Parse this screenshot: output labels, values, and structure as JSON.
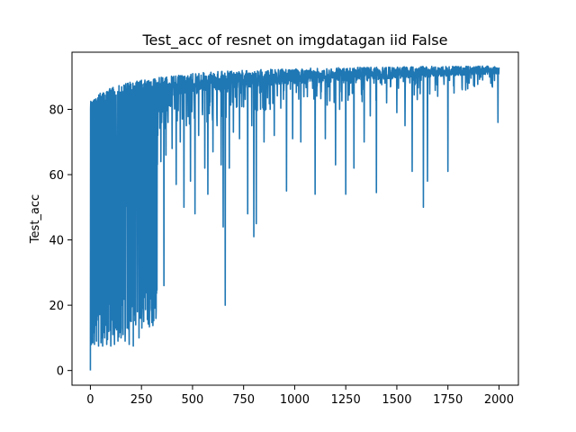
{
  "chart_data": {
    "type": "line",
    "title": "Test_acc of resnet on imgdatagan iid False",
    "xlabel": "",
    "ylabel": "Test_acc",
    "xlim": [
      -90,
      2095
    ],
    "ylim": [
      -4.5,
      97.5
    ],
    "xticks": [
      0,
      250,
      500,
      750,
      1000,
      1250,
      1500,
      1750,
      2000
    ],
    "yticks": [
      0,
      20,
      40,
      60,
      80
    ],
    "xtick_labels": [
      "0",
      "250",
      "500",
      "750",
      "1000",
      "1250",
      "1500",
      "1750",
      "2000"
    ],
    "ytick_labels": [
      "0",
      "20",
      "40",
      "60",
      "80"
    ],
    "grid": false,
    "legend": "none",
    "colors": {
      "line": "#1f77b4",
      "axes": "#000000",
      "background": "#ffffff"
    },
    "series": [
      {
        "x_start": 0,
        "x_end": 2000,
        "upper_envelope": [
          [
            0,
            83
          ],
          [
            25,
            84
          ],
          [
            50,
            85
          ],
          [
            100,
            86.5
          ],
          [
            150,
            87.5
          ],
          [
            200,
            88.5
          ],
          [
            300,
            89.5
          ],
          [
            400,
            90.3
          ],
          [
            500,
            91
          ],
          [
            600,
            91.5
          ],
          [
            750,
            92
          ],
          [
            1000,
            92.5
          ],
          [
            1250,
            92.8
          ],
          [
            1500,
            93
          ],
          [
            1750,
            93.2
          ],
          [
            2000,
            93.3
          ]
        ],
        "dips": [
          [
            0,
            0
          ],
          [
            5,
            8
          ],
          [
            12,
            8.5
          ],
          [
            20,
            8
          ],
          [
            30,
            9
          ],
          [
            40,
            7.5
          ],
          [
            52,
            8.5
          ],
          [
            60,
            7.5
          ],
          [
            70,
            10
          ],
          [
            80,
            8
          ],
          [
            90,
            12
          ],
          [
            100,
            7.5
          ],
          [
            110,
            11
          ],
          [
            118,
            8
          ],
          [
            125,
            13
          ],
          [
            135,
            9
          ],
          [
            142,
            12
          ],
          [
            150,
            10
          ],
          [
            160,
            11
          ],
          [
            170,
            9
          ],
          [
            180,
            13
          ],
          [
            190,
            8
          ],
          [
            200,
            15
          ],
          [
            210,
            7.5
          ],
          [
            215,
            57
          ],
          [
            222,
            14
          ],
          [
            230,
            18
          ],
          [
            238,
            10
          ],
          [
            245,
            16
          ],
          [
            252,
            13
          ],
          [
            260,
            20
          ],
          [
            268,
            24
          ],
          [
            275,
            33
          ],
          [
            282,
            21
          ],
          [
            290,
            28
          ],
          [
            298,
            19
          ],
          [
            305,
            47
          ],
          [
            312,
            37
          ],
          [
            330,
            72
          ],
          [
            345,
            64
          ],
          [
            350,
            80
          ],
          [
            360,
            26
          ],
          [
            370,
            66
          ],
          [
            380,
            76
          ],
          [
            400,
            68
          ],
          [
            420,
            57
          ],
          [
            440,
            70
          ],
          [
            458,
            50
          ],
          [
            470,
            75
          ],
          [
            490,
            58
          ],
          [
            512,
            48
          ],
          [
            530,
            72
          ],
          [
            560,
            62
          ],
          [
            575,
            54
          ],
          [
            600,
            67
          ],
          [
            620,
            75
          ],
          [
            640,
            63
          ],
          [
            650,
            44
          ],
          [
            660,
            20
          ],
          [
            680,
            62
          ],
          [
            700,
            73
          ],
          [
            730,
            71
          ],
          [
            770,
            48
          ],
          [
            790,
            75
          ],
          [
            800,
            41
          ],
          [
            812,
            45
          ],
          [
            850,
            70
          ],
          [
            880,
            80
          ],
          [
            900,
            72
          ],
          [
            960,
            55
          ],
          [
            990,
            71
          ],
          [
            1030,
            70
          ],
          [
            1100,
            54
          ],
          [
            1150,
            71
          ],
          [
            1200,
            63
          ],
          [
            1220,
            80
          ],
          [
            1250,
            54
          ],
          [
            1290,
            62
          ],
          [
            1340,
            70
          ],
          [
            1370,
            78
          ],
          [
            1400,
            54.5
          ],
          [
            1450,
            82
          ],
          [
            1500,
            79
          ],
          [
            1540,
            75
          ],
          [
            1575,
            61
          ],
          [
            1600,
            83
          ],
          [
            1630,
            50
          ],
          [
            1650,
            58
          ],
          [
            1700,
            84
          ],
          [
            1750,
            61
          ],
          [
            1780,
            85
          ],
          [
            1820,
            86
          ],
          [
            1880,
            87
          ],
          [
            1920,
            89
          ],
          [
            1960,
            88
          ],
          [
            1995,
            76
          ]
        ]
      }
    ]
  }
}
